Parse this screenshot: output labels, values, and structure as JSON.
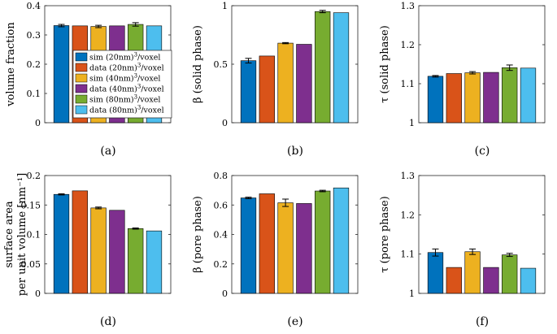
{
  "colors": [
    "#0072BD",
    "#D95319",
    "#EDB120",
    "#7E2F8E",
    "#77AC30",
    "#4DBEEE"
  ],
  "legend": {
    "entries": [
      {
        "text": "sim (20nm)",
        "sup": "3",
        "suffix": "/voxel"
      },
      {
        "text": "data (20nm)",
        "sup": "3",
        "suffix": "/voxel"
      },
      {
        "text": "sim (40nm)",
        "sup": "3",
        "suffix": "/voxel"
      },
      {
        "text": "data (40nm)",
        "sup": "3",
        "suffix": "/voxel"
      },
      {
        "text": "sim (80nm)",
        "sup": "3",
        "suffix": "/voxel"
      },
      {
        "text": "data (80nm)",
        "sup": "3",
        "suffix": "/voxel"
      }
    ]
  },
  "chart_data": [
    {
      "id": "a",
      "type": "bar",
      "caption": "(a)",
      "ylabel": [
        "volume fraction"
      ],
      "ylim": [
        0,
        0.4
      ],
      "yticks": [
        "0",
        "0.1",
        "0.2",
        "0.3",
        "0.4"
      ],
      "tickvals": [
        0,
        0.1,
        0.2,
        0.3,
        0.4
      ],
      "values": [
        0.332,
        0.331,
        0.329,
        0.331,
        0.336,
        0.331
      ],
      "errors": [
        0.004,
        0,
        0.004,
        0,
        0.006,
        0
      ],
      "legend": "inside"
    },
    {
      "id": "b",
      "type": "bar",
      "caption": "(b)",
      "ylabel": [
        "β (solid phase)"
      ],
      "ylim": [
        0,
        1
      ],
      "yticks": [
        "0",
        "0.5",
        "1"
      ],
      "tickvals": [
        0,
        0.5,
        1
      ],
      "values": [
        0.53,
        0.57,
        0.68,
        0.67,
        0.95,
        0.94
      ],
      "errors": [
        0.02,
        0,
        0.005,
        0,
        0.01,
        0
      ]
    },
    {
      "id": "c",
      "type": "bar",
      "caption": "(c)",
      "ylabel": [
        "τ (solid phase)"
      ],
      "ylim": [
        1,
        1.3
      ],
      "yticks": [
        "1",
        "1.1",
        "1.2",
        "1.3"
      ],
      "tickvals": [
        1,
        1.1,
        1.2,
        1.3
      ],
      "values": [
        1.119,
        1.126,
        1.128,
        1.129,
        1.141,
        1.14
      ],
      "errors": [
        0.002,
        0,
        0.003,
        0,
        0.007,
        0
      ]
    },
    {
      "id": "d",
      "type": "bar",
      "caption": "(d)",
      "ylabel": [
        "surface area",
        "per unit volume [nm⁻¹]"
      ],
      "ylim": [
        0,
        0.2
      ],
      "yticks": [
        "0",
        "0.05",
        "0.1",
        "0.15",
        "0.2"
      ],
      "tickvals": [
        0,
        0.05,
        0.1,
        0.15,
        0.2
      ],
      "values": [
        0.168,
        0.174,
        0.145,
        0.141,
        0.11,
        0.106
      ],
      "errors": [
        0.001,
        0,
        0.0015,
        0,
        0.001,
        0
      ]
    },
    {
      "id": "e",
      "type": "bar",
      "caption": "(e)",
      "ylabel": [
        "β (pore phase)"
      ],
      "ylim": [
        0,
        0.8
      ],
      "yticks": [
        "0",
        "0.2",
        "0.4",
        "0.6",
        "0.8"
      ],
      "tickvals": [
        0,
        0.2,
        0.4,
        0.6,
        0.8
      ],
      "values": [
        0.648,
        0.676,
        0.615,
        0.61,
        0.695,
        0.716
      ],
      "errors": [
        0.005,
        0,
        0.025,
        0,
        0.005,
        0
      ]
    },
    {
      "id": "f",
      "type": "bar",
      "caption": "(f)",
      "ylabel": [
        "τ (pore phase)"
      ],
      "ylim": [
        1,
        1.3
      ],
      "yticks": [
        "1",
        "1.1",
        "1.2",
        "1.3"
      ],
      "tickvals": [
        1,
        1.1,
        1.2,
        1.3
      ],
      "values": [
        1.104,
        1.066,
        1.106,
        1.066,
        1.098,
        1.064
      ],
      "errors": [
        0.009,
        0,
        0.007,
        0,
        0.004,
        0
      ]
    }
  ]
}
